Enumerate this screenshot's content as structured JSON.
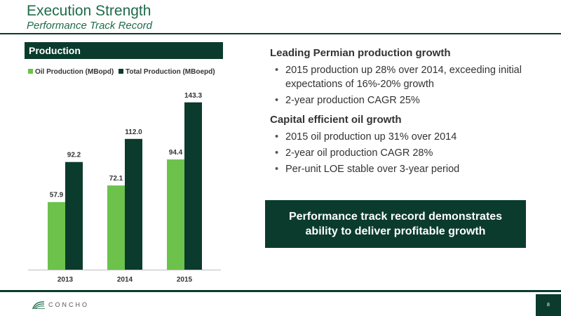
{
  "header": {
    "title": "Execution Strength",
    "subtitle": "Performance Track Record"
  },
  "section": {
    "label": "Production"
  },
  "colors": {
    "dark_green": "#0b3b2c",
    "light_green": "#6cc24a",
    "title_green": "#1e6b4a"
  },
  "chart_data": {
    "type": "bar",
    "categories": [
      "2013",
      "2014",
      "2015"
    ],
    "series": [
      {
        "name": "Oil Production (MBopd)",
        "values": [
          57.9,
          72.1,
          94.4
        ],
        "color": "#6cc24a"
      },
      {
        "name": "Total Production (MBoepd)",
        "values": [
          92.2,
          112.0,
          143.3
        ],
        "color": "#0b3b2c"
      }
    ],
    "value_labels": [
      [
        "57.9",
        "72.1",
        "94.4"
      ],
      [
        "92.2",
        "112.0",
        "143.3"
      ]
    ],
    "title": "",
    "xlabel": "",
    "ylabel": "",
    "ylim": [
      0,
      160
    ],
    "grid": false,
    "legend": "top-left"
  },
  "bullets_section_1": {
    "heading": "Leading Permian production growth",
    "items": [
      "2015 production up 28% over 2014, exceeding initial expectations of 16%-20% growth",
      "2-year production CAGR 25%"
    ]
  },
  "bullets_section_2": {
    "heading": "Capital efficient oil growth",
    "items": [
      "2015 oil production up 31% over 2014",
      "2-year oil production CAGR 28%",
      "Per-unit LOE stable over 3-year period"
    ]
  },
  "callout": {
    "line1": "Performance track record demonstrates",
    "line2": "ability to deliver profitable growth"
  },
  "footer": {
    "logo_text": "CONCHO",
    "logo_icon": "concho-logo-icon",
    "page_number": "8"
  }
}
